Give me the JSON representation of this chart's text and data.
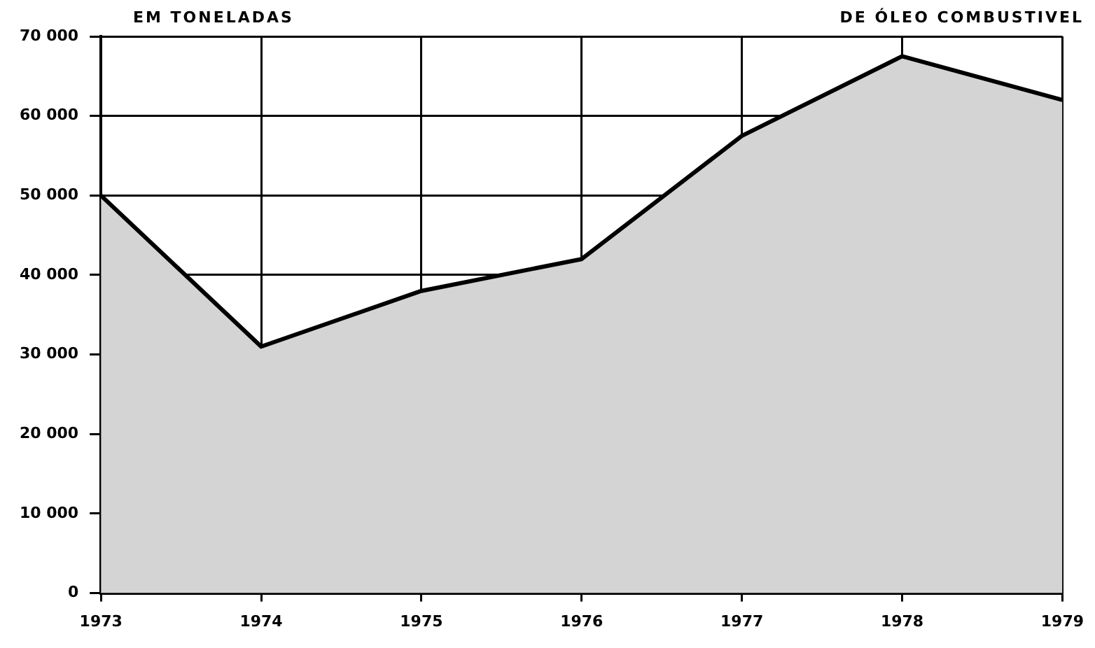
{
  "chart_data": {
    "type": "area",
    "title": "DE ÓLEO COMBUSTIVEL",
    "ylabel": "EM TONELADAS",
    "categories": [
      "1973",
      "1974",
      "1975",
      "1976",
      "1977",
      "1978",
      "1979"
    ],
    "series": [
      {
        "color": "#000000",
        "values": [
          50000,
          31000,
          38000,
          42000,
          57500,
          67500,
          62000
        ]
      }
    ],
    "ylim": [
      0,
      70000
    ],
    "yticks": [
      {
        "value": 0,
        "label": "0"
      },
      {
        "value": 10000,
        "label": "10 000"
      },
      {
        "value": 20000,
        "label": "20 000"
      },
      {
        "value": 30000,
        "label": "30 000"
      },
      {
        "value": 40000,
        "label": "40 000"
      },
      {
        "value": 50000,
        "label": "50 000"
      },
      {
        "value": 60000,
        "label": "60 000"
      },
      {
        "value": 70000,
        "label": "70 000"
      }
    ],
    "grid": true,
    "legend": false,
    "marker": "none",
    "line_style": "solid"
  }
}
